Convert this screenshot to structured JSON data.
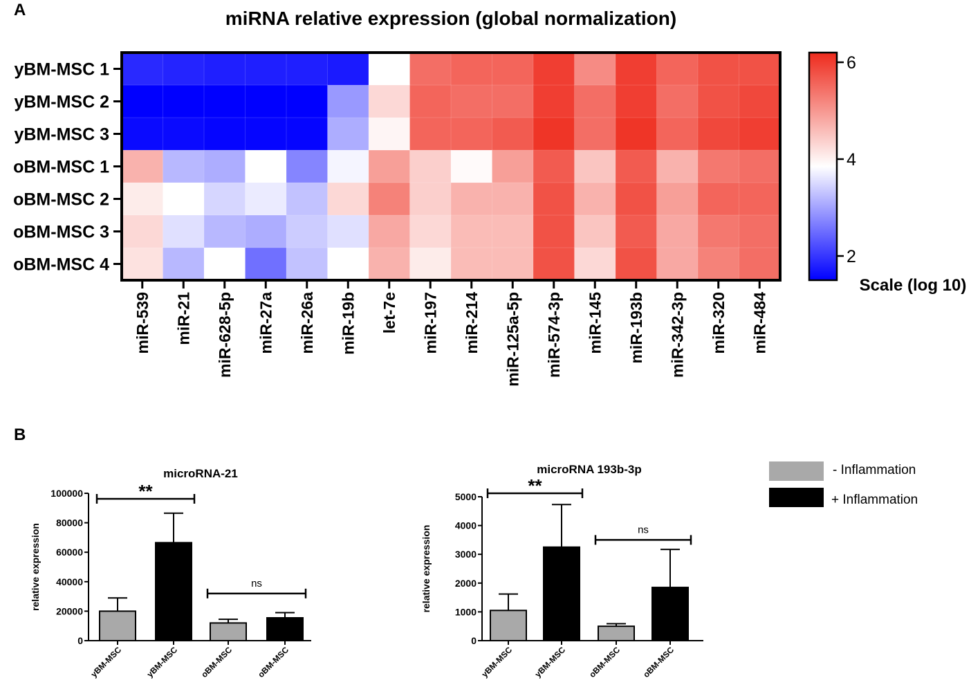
{
  "panel_labels": {
    "a": "A",
    "b": "B"
  },
  "chart_data": [
    {
      "type": "heatmap",
      "title": "miRNA relative expression (global normalization)",
      "rows": [
        "yBM-MSC 1",
        "yBM-MSC 2",
        "yBM-MSC 3",
        "oBM-MSC 1",
        "oBM-MSC 2",
        "oBM-MSC 3",
        "oBM-MSC 4"
      ],
      "columns": [
        "miR-539",
        "miR-21",
        "miR-628-5p",
        "miR-27a",
        "miR-26a",
        "miR-19b",
        "let-7e",
        "miR-197",
        "miR-214",
        "miR-125a-5p",
        "miR-574-3p",
        "miR-145",
        "miR-193b",
        "miR-342-3p",
        "miR-320",
        "miR-484"
      ],
      "values": [
        [
          1.9,
          1.85,
          1.8,
          1.8,
          1.8,
          1.75,
          4.0,
          5.5,
          5.6,
          5.6,
          6.0,
          5.2,
          6.0,
          5.6,
          5.8,
          5.8
        ],
        [
          1.5,
          1.5,
          1.5,
          1.5,
          1.5,
          3.0,
          4.4,
          5.6,
          5.5,
          5.5,
          6.0,
          5.5,
          6.0,
          5.5,
          5.8,
          5.9
        ],
        [
          1.6,
          1.6,
          1.55,
          1.55,
          1.55,
          3.2,
          4.1,
          5.6,
          5.6,
          5.7,
          6.1,
          5.5,
          6.1,
          5.6,
          5.9,
          6.0
        ],
        [
          4.8,
          3.3,
          3.2,
          4.0,
          2.8,
          3.9,
          5.0,
          4.5,
          4.05,
          5.0,
          5.7,
          4.6,
          5.7,
          4.8,
          5.4,
          5.5
        ],
        [
          4.2,
          4.0,
          3.6,
          3.8,
          3.4,
          4.4,
          5.3,
          4.5,
          4.8,
          4.8,
          5.8,
          4.8,
          5.8,
          5.0,
          5.6,
          5.6
        ],
        [
          4.4,
          3.7,
          3.3,
          3.2,
          3.5,
          3.7,
          4.9,
          4.4,
          4.7,
          4.7,
          5.8,
          4.6,
          5.7,
          4.9,
          5.4,
          5.5
        ],
        [
          4.3,
          3.3,
          4.0,
          2.6,
          3.4,
          4.0,
          4.8,
          4.2,
          4.7,
          4.7,
          5.8,
          4.4,
          5.8,
          4.9,
          5.3,
          5.5
        ]
      ],
      "colorbar": {
        "label": "Scale (log 10)",
        "min": 1.5,
        "mid": 4,
        "max": 6.2,
        "ticks": [
          2,
          4,
          6
        ],
        "colors": {
          "low": "#0000ff",
          "mid": "#ffffff",
          "high": "#ee2b1d"
        }
      }
    },
    {
      "type": "bar",
      "title": "microRNA-21",
      "ylabel": "relative expression",
      "ylim": [
        0,
        100000
      ],
      "yticks": [
        0,
        20000,
        40000,
        60000,
        80000,
        100000
      ],
      "categories": [
        "yBM-MSC",
        "yBM-MSC",
        "oBM-MSC",
        "oBM-MSC"
      ],
      "values": [
        20000,
        66500,
        12000,
        15500
      ],
      "errors": [
        9000,
        20000,
        2500,
        3500
      ],
      "bar_colors": [
        "#a9a9a9",
        "#000000",
        "#a9a9a9",
        "#000000"
      ],
      "significance": [
        {
          "from": 0,
          "to": 1,
          "label": "**",
          "level": 100000
        },
        {
          "from": 2,
          "to": 3,
          "label": "ns",
          "level": 32000
        }
      ]
    },
    {
      "type": "bar",
      "title": "microRNA 193b-3p",
      "ylabel": "relative expression",
      "ylim": [
        0,
        5000
      ],
      "yticks": [
        0,
        1000,
        2000,
        3000,
        4000,
        5000
      ],
      "categories": [
        "yBM-MSC",
        "yBM-MSC",
        "oBM-MSC",
        "oBM-MSC"
      ],
      "values": [
        1050,
        3250,
        500,
        1850
      ],
      "errors": [
        570,
        1480,
        90,
        1320
      ],
      "bar_colors": [
        "#a9a9a9",
        "#000000",
        "#a9a9a9",
        "#000000"
      ],
      "significance": [
        {
          "from": 0,
          "to": 1,
          "label": "**",
          "level": 5000
        },
        {
          "from": 2,
          "to": 3,
          "label": "ns",
          "level": 3500
        }
      ]
    }
  ],
  "legend": {
    "items": [
      {
        "label": "- Inflammation",
        "color": "#a9a9a9"
      },
      {
        "label": "+ Inflammation",
        "color": "#000000"
      }
    ]
  }
}
